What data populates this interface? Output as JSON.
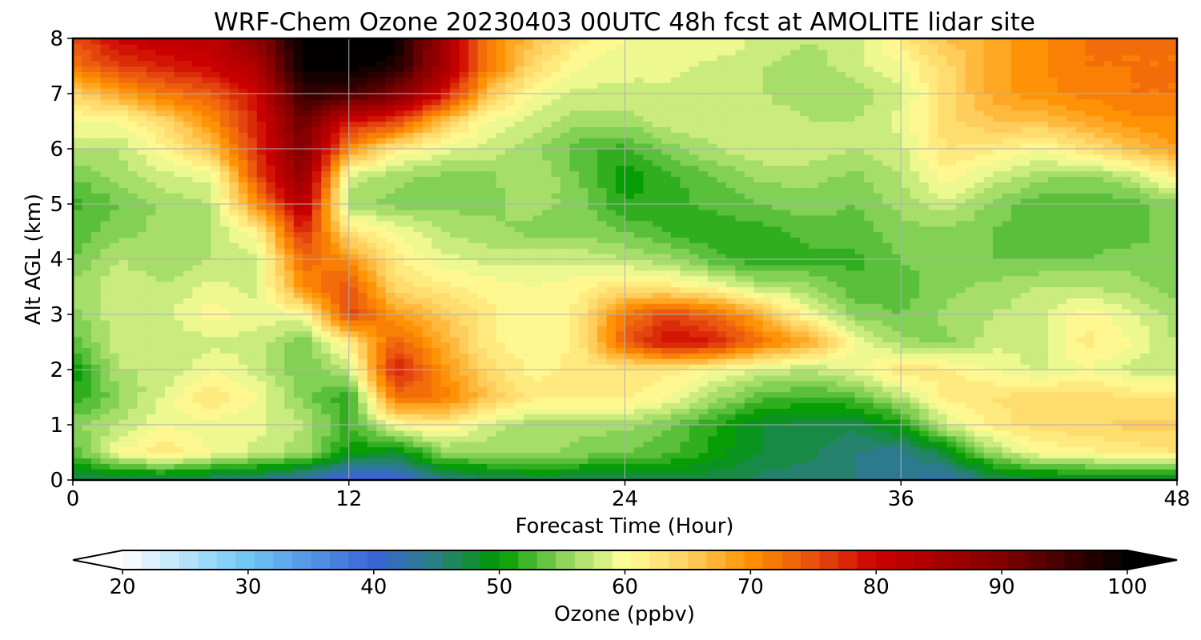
{
  "chart_data": {
    "type": "heatmap",
    "title": "WRF-Chem Ozone  20230403 00UTC 48h fcst at AMOLITE lidar site",
    "xlabel": "Forecast Time (Hour)",
    "ylabel": "Alt AGL (km)",
    "xlim": [
      0,
      48
    ],
    "ylim": [
      0,
      8
    ],
    "x_ticks": [
      0,
      12,
      24,
      36,
      48
    ],
    "y_ticks": [
      0,
      1,
      2,
      3,
      4,
      5,
      6,
      7,
      8
    ],
    "grid": true,
    "x": [
      0,
      2,
      4,
      6,
      8,
      10,
      12,
      14,
      16,
      18,
      20,
      22,
      24,
      26,
      28,
      30,
      32,
      34,
      36,
      38,
      40,
      42,
      44,
      46,
      48
    ],
    "y": [
      0,
      0.5,
      1,
      1.5,
      2,
      2.5,
      3,
      3.5,
      4,
      4.5,
      5,
      5.5,
      6,
      6.5,
      7,
      7.5,
      8
    ],
    "z": [
      [
        46,
        46,
        46,
        45,
        44,
        42,
        38,
        39,
        44,
        46,
        47,
        47,
        47,
        47,
        47,
        46,
        45,
        45,
        44,
        42,
        46,
        47,
        47,
        47,
        47
      ],
      [
        53,
        60,
        63,
        60,
        58,
        56,
        50,
        48,
        55,
        56,
        56,
        55,
        54,
        53,
        50,
        48,
        47,
        45,
        44,
        48,
        56,
        60,
        61,
        62,
        63
      ],
      [
        55,
        57,
        60,
        59,
        59,
        57,
        52,
        60,
        62,
        58,
        56,
        56,
        56,
        54,
        51,
        48,
        47,
        47,
        50,
        58,
        62,
        64,
        64,
        65,
        65
      ],
      [
        51,
        55,
        59,
        63,
        60,
        55,
        51,
        72,
        72,
        66,
        62,
        62,
        62,
        60,
        56,
        53,
        52,
        53,
        57,
        62,
        63,
        64,
        64,
        63,
        63
      ],
      [
        50,
        57,
        57,
        60,
        58,
        54,
        57,
        79,
        70,
        64,
        61,
        62,
        62,
        62,
        60,
        58,
        57,
        59,
        63,
        62,
        60,
        58,
        60,
        58,
        57
      ],
      [
        53,
        58,
        57,
        58,
        58,
        54,
        62,
        74,
        68,
        62,
        60,
        62,
        74,
        80,
        78,
        72,
        68,
        60,
        56,
        55,
        58,
        58,
        62,
        60,
        57
      ],
      [
        55,
        58,
        58,
        61,
        59,
        60,
        76,
        69,
        66,
        62,
        60,
        62,
        72,
        76,
        73,
        67,
        60,
        55,
        54,
        56,
        57,
        58,
        61,
        59,
        56
      ],
      [
        56,
        58,
        57,
        59,
        58,
        70,
        75,
        64,
        62,
        61,
        60,
        61,
        63,
        62,
        60,
        57,
        56,
        53,
        53,
        55,
        56,
        57,
        57,
        56,
        55
      ],
      [
        54,
        57,
        56,
        57,
        58,
        73,
        70,
        62,
        59,
        58,
        58,
        58,
        57,
        56,
        53,
        51,
        52,
        52,
        54,
        55,
        54,
        54,
        54,
        55,
        54
      ],
      [
        53,
        55,
        56,
        57,
        61,
        78,
        63,
        60,
        57,
        56,
        55,
        55,
        54,
        52,
        51,
        52,
        53,
        53,
        55,
        55,
        54,
        53,
        53,
        53,
        55
      ],
      [
        52,
        54,
        56,
        57,
        70,
        84,
        56,
        55,
        55,
        55,
        56,
        55,
        51,
        52,
        53,
        54,
        55,
        54,
        56,
        58,
        55,
        53,
        53,
        53,
        55
      ],
      [
        54,
        56,
        58,
        59,
        75,
        88,
        58,
        56,
        55,
        55,
        57,
        54,
        50,
        52,
        54,
        56,
        56,
        55,
        57,
        61,
        58,
        56,
        55,
        57,
        62
      ],
      [
        57,
        57,
        61,
        66,
        77,
        90,
        70,
        62,
        59,
        58,
        56,
        53,
        52,
        55,
        57,
        58,
        58,
        57,
        58,
        63,
        62,
        60,
        63,
        66,
        69
      ],
      [
        60,
        60,
        64,
        70,
        78,
        92,
        79,
        76,
        66,
        60,
        58,
        56,
        56,
        58,
        58,
        58,
        57,
        57,
        59,
        64,
        66,
        66,
        68,
        70,
        70
      ],
      [
        64,
        68,
        72,
        74,
        80,
        96,
        95,
        90,
        80,
        66,
        60,
        58,
        58,
        58,
        58,
        57,
        56,
        56,
        58,
        64,
        68,
        70,
        71,
        72,
        72
      ],
      [
        72,
        76,
        78,
        80,
        84,
        100,
        100,
        98,
        86,
        72,
        64,
        60,
        59,
        59,
        58,
        57,
        56,
        58,
        60,
        64,
        68,
        70,
        72,
        72,
        72
      ],
      [
        75,
        80,
        82,
        82,
        88,
        100,
        100,
        100,
        86,
        72,
        66,
        62,
        60,
        60,
        60,
        58,
        57,
        58,
        62,
        66,
        68,
        70,
        72,
        72,
        72
      ]
    ],
    "colorbar": {
      "label": "Ozone  (ppbv)",
      "min": 20,
      "max": 100,
      "ticks": [
        20,
        30,
        40,
        50,
        60,
        70,
        80,
        90,
        100
      ],
      "extend": "both",
      "orientation": "horizontal",
      "stops": [
        {
          "v": 20,
          "c": "#ffffff"
        },
        {
          "v": 30,
          "c": "#6ec6f5"
        },
        {
          "v": 40,
          "c": "#3a64d6"
        },
        {
          "v": 45,
          "c": "#2a7e80"
        },
        {
          "v": 50,
          "c": "#009a00"
        },
        {
          "v": 55,
          "c": "#8ad35a"
        },
        {
          "v": 60,
          "c": "#ffff99"
        },
        {
          "v": 65,
          "c": "#ffd060"
        },
        {
          "v": 70,
          "c": "#ff9000"
        },
        {
          "v": 75,
          "c": "#e85010"
        },
        {
          "v": 80,
          "c": "#cc0000"
        },
        {
          "v": 90,
          "c": "#800000"
        },
        {
          "v": 100,
          "c": "#000000"
        }
      ]
    }
  }
}
